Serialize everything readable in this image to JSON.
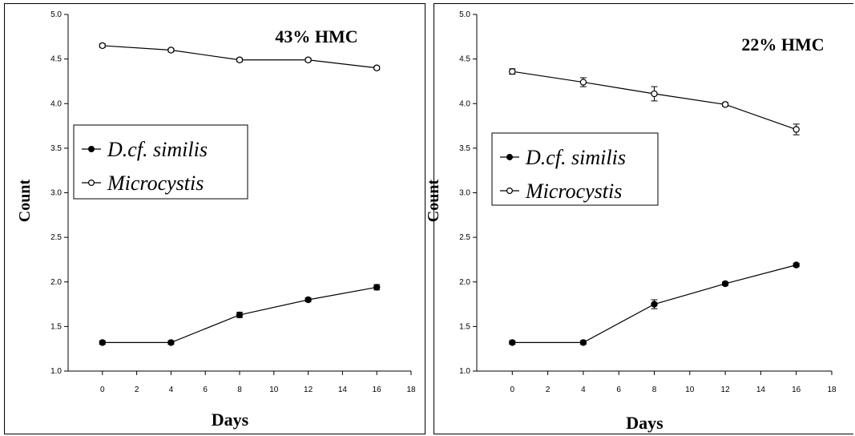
{
  "chart_data": [
    {
      "type": "line",
      "title": "43% HMC",
      "xlabel": "Days",
      "ylabel": "Count",
      "xlim": [
        -2,
        18
      ],
      "ylim": [
        1.0,
        5.0
      ],
      "xticks": [
        0,
        2,
        4,
        6,
        8,
        10,
        12,
        14,
        16,
        18
      ],
      "xtick_labels": [
        "0",
        "2",
        "4",
        "6",
        "8",
        "10",
        "12",
        "14",
        "16",
        "18"
      ],
      "yticks": [
        1.0,
        1.5,
        2.0,
        2.5,
        3.0,
        3.5,
        4.0,
        4.5,
        5.0
      ],
      "ytick_labels": [
        "1.0",
        "1.5",
        "2.0",
        "2.5",
        "3.0",
        "3.5",
        "4.0",
        "4.5",
        "5.0"
      ],
      "grid": false,
      "legend_position": "middle-left",
      "series": [
        {
          "name": "D.cf. similis",
          "marker": "filled-circle",
          "color": "#000000",
          "x": [
            0,
            4,
            8,
            12,
            16
          ],
          "y": [
            1.32,
            1.32,
            1.63,
            1.8,
            1.94
          ],
          "err": [
            0.02,
            0.02,
            0.03,
            0.02,
            0.03
          ]
        },
        {
          "name": "Microcystis",
          "marker": "open-circle",
          "color": "#000000",
          "x": [
            0,
            4,
            8,
            12,
            16
          ],
          "y": [
            4.65,
            4.6,
            4.49,
            4.49,
            4.4
          ],
          "err": [
            0.02,
            0.02,
            0.02,
            0.02,
            0.02
          ]
        }
      ]
    },
    {
      "type": "line",
      "title": "22% HMC",
      "xlabel": "Days",
      "ylabel": "Count",
      "xlim": [
        -2,
        18
      ],
      "ylim": [
        1.0,
        5.0
      ],
      "xticks": [
        0,
        2,
        4,
        6,
        8,
        10,
        12,
        14,
        16,
        18
      ],
      "xtick_labels": [
        "0",
        "2",
        "4",
        "6",
        "8",
        "10",
        "12",
        "14",
        "16",
        "18"
      ],
      "yticks": [
        1.0,
        1.5,
        2.0,
        2.5,
        3.0,
        3.5,
        4.0,
        4.5,
        5.0
      ],
      "ytick_labels": [
        "1.0",
        "1.5",
        "2.0",
        "2.5",
        "3.0",
        "3.5",
        "4.0",
        "4.5",
        "5.0"
      ],
      "grid": false,
      "legend_position": "middle-left",
      "series": [
        {
          "name": "D.cf. similis",
          "marker": "filled-circle",
          "color": "#000000",
          "x": [
            0,
            4,
            8,
            12,
            16
          ],
          "y": [
            1.32,
            1.32,
            1.75,
            1.98,
            2.19
          ],
          "err": [
            0.02,
            0.02,
            0.05,
            0.02,
            0.02
          ]
        },
        {
          "name": "Microcystis",
          "marker": "open-circle",
          "color": "#000000",
          "x": [
            0,
            4,
            8,
            12,
            16
          ],
          "y": [
            4.36,
            4.24,
            4.11,
            3.99,
            3.71
          ],
          "err": [
            0.03,
            0.05,
            0.08,
            0.02,
            0.06
          ]
        }
      ]
    }
  ]
}
